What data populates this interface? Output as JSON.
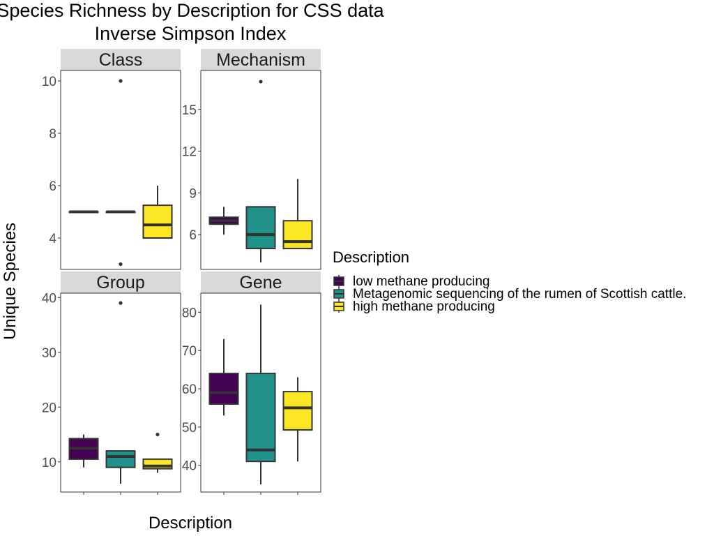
{
  "chart_data": {
    "type": "boxplot",
    "title_lines": [
      "Species Richness by Description for CSS data",
      "Inverse Simpson Index"
    ],
    "xlabel": "Description",
    "ylabel": "Unique Species",
    "legend": {
      "title": "Description",
      "placement": "right",
      "items": [
        {
          "label": "low methane producing",
          "color": "#440154"
        },
        {
          "label": "Metagenomic sequencing of the rumen of Scottish cattle.",
          "color": "#21918C"
        },
        {
          "label": "high methane producing",
          "color": "#FDE725"
        }
      ]
    },
    "panels": [
      {
        "name": "Class",
        "ylim": [
          2.8,
          10.4
        ],
        "yticks": [
          4,
          6,
          8,
          10
        ],
        "boxes": [
          {
            "min": 5,
            "q1": 5,
            "median": 5,
            "q3": 5,
            "max": 5,
            "outliers": []
          },
          {
            "min": 5,
            "q1": 5,
            "median": 5,
            "q3": 5,
            "max": 5,
            "outliers": [
              10,
              3
            ]
          },
          {
            "min": 4,
            "q1": 4,
            "median": 4.5,
            "q3": 5.25,
            "max": 6,
            "outliers": []
          }
        ]
      },
      {
        "name": "Mechanism",
        "ylim": [
          3.5,
          17.8
        ],
        "yticks": [
          6,
          9,
          12,
          15
        ],
        "boxes": [
          {
            "min": 6,
            "q1": 6.75,
            "median": 7,
            "q3": 7.25,
            "max": 8,
            "outliers": []
          },
          {
            "min": 4,
            "q1": 5,
            "median": 6,
            "q3": 8,
            "max": 8,
            "outliers": [
              17
            ]
          },
          {
            "min": 5,
            "q1": 5,
            "median": 5.5,
            "q3": 7,
            "max": 10,
            "outliers": []
          }
        ]
      },
      {
        "name": "Group",
        "ylim": [
          4.5,
          40.8
        ],
        "yticks": [
          10,
          20,
          30,
          40
        ],
        "boxes": [
          {
            "min": 9,
            "q1": 10.5,
            "median": 12.5,
            "q3": 14.25,
            "max": 15,
            "outliers": []
          },
          {
            "min": 6,
            "q1": 9,
            "median": 11,
            "q3": 12,
            "max": 12,
            "outliers": [
              39
            ]
          },
          {
            "min": 8,
            "q1": 8.75,
            "median": 9.25,
            "q3": 10.5,
            "max": 10.5,
            "outliers": [
              15
            ]
          }
        ]
      },
      {
        "name": "Gene",
        "ylim": [
          33,
          85
        ],
        "yticks": [
          40,
          50,
          60,
          70,
          80
        ],
        "boxes": [
          {
            "min": 53,
            "q1": 56,
            "median": 59,
            "q3": 64,
            "max": 73,
            "outliers": []
          },
          {
            "min": 35,
            "q1": 41,
            "median": 44,
            "q3": 64,
            "max": 82,
            "outliers": []
          },
          {
            "min": 41,
            "q1": 49.25,
            "median": 55,
            "q3": 59.25,
            "max": 63,
            "outliers": []
          }
        ]
      }
    ]
  }
}
